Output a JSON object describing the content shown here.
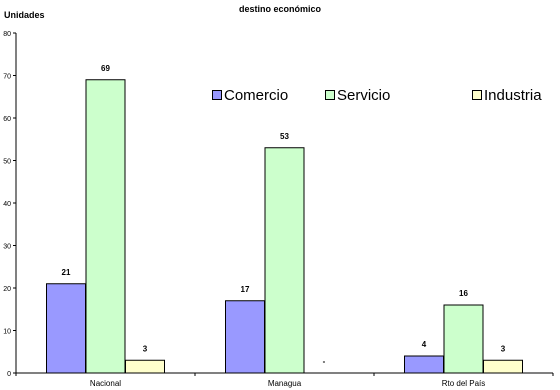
{
  "chart_data": {
    "type": "bar",
    "title": "destino económico",
    "ylabel": "Unidades",
    "xlabel": "",
    "ylim": [
      0,
      80
    ],
    "yticks": [
      0,
      10,
      20,
      30,
      40,
      50,
      60,
      70,
      80
    ],
    "categories": [
      "Nacional",
      "Managua",
      "Rto del País"
    ],
    "series": [
      {
        "name": "Comercio",
        "color": "#9999ff",
        "values": [
          21,
          17,
          4
        ],
        "labels": [
          "21",
          "17",
          "4"
        ]
      },
      {
        "name": "Servicio",
        "color": "#ccffcc",
        "values": [
          69,
          53,
          16
        ],
        "labels": [
          "69",
          "53",
          "16"
        ]
      },
      {
        "name": "Industria",
        "color": "#ffffcc",
        "values": [
          3,
          0,
          3
        ],
        "labels": [
          "3",
          "-",
          "3"
        ]
      }
    ],
    "legend_position": "top-right",
    "grid": false
  }
}
